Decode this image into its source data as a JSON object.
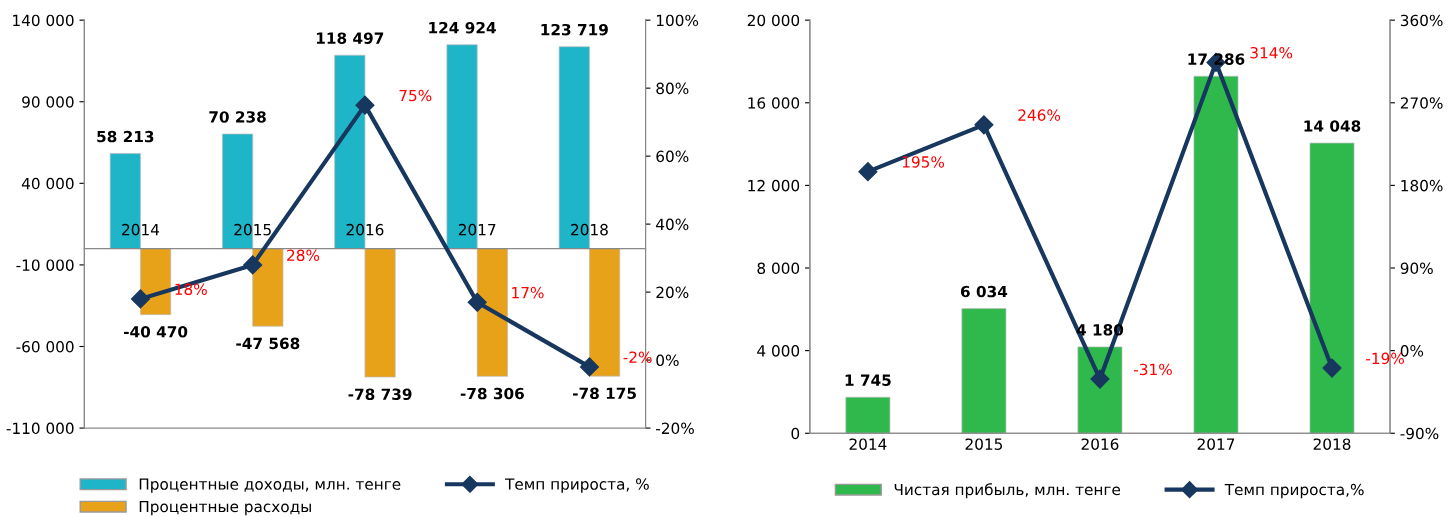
{
  "chart_data": [
    {
      "type": "bar",
      "categories": [
        "2014",
        "2015",
        "2016",
        "2017",
        "2018"
      ],
      "series": [
        {
          "name": "Процентные доходы, млн. тенге",
          "color": "#1fb5c8",
          "values": [
            58213,
            70238,
            118497,
            124924,
            123719
          ],
          "value_labels": [
            "58 213",
            "70 238",
            "118 497",
            "124 924",
            "123 719"
          ]
        },
        {
          "name": "Процентные расходы",
          "color": "#e8a21a",
          "values": [
            -40470,
            -47568,
            -78739,
            -78306,
            -78175
          ],
          "value_labels": [
            "-40 470",
            "-47 568",
            "-78 739",
            "-78 306",
            "-78 175"
          ]
        },
        {
          "name": "Темп прироста, %",
          "type": "line",
          "axis": "y2",
          "color": "#17375e",
          "marker": "diamond",
          "values": [
            18,
            28,
            75,
            17,
            -2
          ],
          "value_labels": [
            "18%",
            "28%",
            "75%",
            "17%",
            "-2%"
          ]
        }
      ],
      "ylim": [
        -110000,
        140000
      ],
      "yticks": [
        {
          "value": -110000,
          "label": "-110 000"
        },
        {
          "value": -60000,
          "label": "-60 000"
        },
        {
          "value": -10000,
          "label": "-10 000"
        },
        {
          "value": 40000,
          "label": "40 000"
        },
        {
          "value": 90000,
          "label": "90 000"
        },
        {
          "value": 140000,
          "label": "140 000"
        }
      ],
      "y2lim": [
        -20,
        100
      ],
      "y2ticks": [
        {
          "value": -20,
          "label": "-20%"
        },
        {
          "value": 0,
          "label": "0%"
        },
        {
          "value": 20,
          "label": "20%"
        },
        {
          "value": 40,
          "label": "40%"
        },
        {
          "value": 60,
          "label": "60%"
        },
        {
          "value": 80,
          "label": "80%"
        },
        {
          "value": 100,
          "label": "100%"
        }
      ],
      "legend": "bottom"
    },
    {
      "type": "bar",
      "categories": [
        "2014",
        "2015",
        "2016",
        "2017",
        "2018"
      ],
      "series": [
        {
          "name": "Чистая прибыль, млн. тенге",
          "color": "#2fb84c",
          "values": [
            1745,
            6034,
            4180,
            17286,
            14048
          ],
          "value_labels": [
            "1 745",
            "6 034",
            "4 180",
            "17 286",
            "14 048"
          ]
        },
        {
          "name": "Темп прироста,%",
          "type": "line",
          "axis": "y2",
          "color": "#17375e",
          "marker": "diamond",
          "values": [
            195,
            246,
            -31,
            314,
            -19
          ],
          "value_labels": [
            "195%",
            "246%",
            "-31%",
            "314%",
            "-19%"
          ]
        }
      ],
      "ylim": [
        0,
        20000
      ],
      "yticks": [
        {
          "value": 0,
          "label": "0"
        },
        {
          "value": 4000,
          "label": "4 000"
        },
        {
          "value": 8000,
          "label": "8 000"
        },
        {
          "value": 12000,
          "label": "12 000"
        },
        {
          "value": 16000,
          "label": "16 000"
        },
        {
          "value": 20000,
          "label": "20 000"
        }
      ],
      "y2lim": [
        -90,
        360
      ],
      "y2ticks": [
        {
          "value": -90,
          "label": "-90%"
        },
        {
          "value": 0,
          "label": "0%"
        },
        {
          "value": 90,
          "label": "90%"
        },
        {
          "value": 180,
          "label": "180%"
        },
        {
          "value": 270,
          "label": "270%"
        },
        {
          "value": 360,
          "label": "360%"
        }
      ],
      "legend": "bottom"
    }
  ]
}
